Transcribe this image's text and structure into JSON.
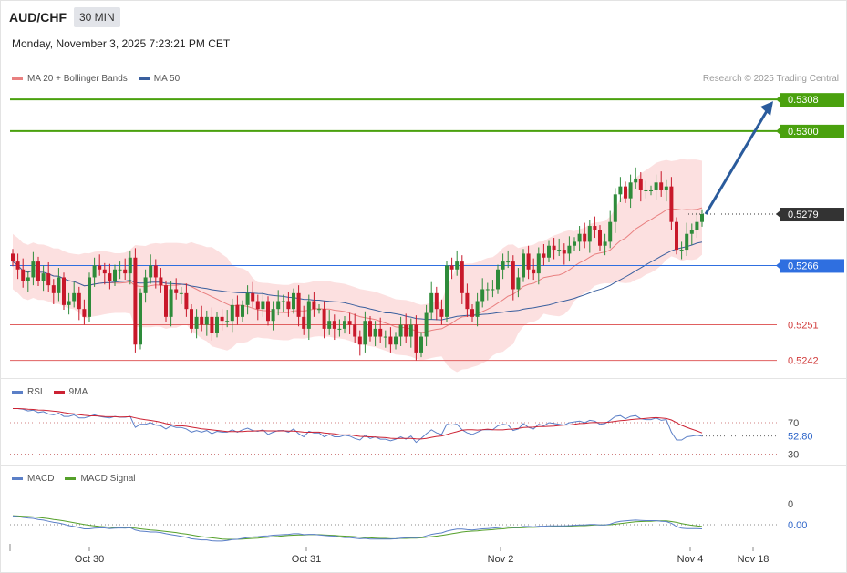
{
  "header": {
    "symbol": "AUD/CHF",
    "timeframe": "30 MIN",
    "datetime": "Monday, November 3, 2025 7:23:21 PM CET"
  },
  "legend_main": {
    "ma20": "MA 20 + Bollinger Bands",
    "ma50": "MA 50"
  },
  "legend_rsi": {
    "rsi": "RSI",
    "ma9": "9MA"
  },
  "legend_macd": {
    "macd": "MACD",
    "signal": "MACD Signal"
  },
  "credit": "Research © 2025 Trading Central",
  "colors": {
    "up": "#2e8b3a",
    "down": "#c8182a",
    "bb_fill": "#fbd5d5",
    "ma20": "#e98080",
    "ma50": "#3a5f9e",
    "resistance": "#4aa10e",
    "support": "#e06060",
    "pivot": "#2f6fe0",
    "arrow": "#2a5b9c",
    "rsi": "#5b7fc7",
    "rsi_ma": "#cc2233",
    "macd": "#5b7fc7",
    "signal": "#55a02a"
  },
  "chart_data": [
    {
      "type": "candlestick",
      "y_range": [
        5.2232,
        5.2313
      ],
      "levels": [
        {
          "label": "0.5308",
          "kind": "resistance",
          "value": 0.5308
        },
        {
          "label": "0.5300",
          "kind": "resistance",
          "value": 0.53
        },
        {
          "label": "0.5279",
          "kind": "last",
          "value": 0.5279
        },
        {
          "label": "0.5266",
          "kind": "pivot",
          "value": 0.5266
        },
        {
          "label": "0.5251",
          "kind": "support",
          "value": 0.5251
        },
        {
          "label": "0.5242",
          "kind": "support",
          "value": 0.5242
        }
      ],
      "x_labels": [
        "Oct 30",
        "Oct 31",
        "Nov 2",
        "Nov 4",
        "Nov 18"
      ],
      "projection": {
        "from": 0.5279,
        "to": 0.5308
      },
      "close": [
        0.5267,
        0.5265,
        0.5262,
        0.5263,
        0.5267,
        0.5262,
        0.5264,
        0.5261,
        0.5259,
        0.5263,
        0.5256,
        0.5257,
        0.5259,
        0.5255,
        0.5253,
        0.5263,
        0.5266,
        0.5265,
        0.5264,
        0.5262,
        0.5265,
        0.5265,
        0.5264,
        0.5268,
        0.5246,
        0.5259,
        0.5263,
        0.5266,
        0.5263,
        0.5261,
        0.5253,
        0.526,
        0.5259,
        0.5259,
        0.5255,
        0.525,
        0.5253,
        0.5251,
        0.5253,
        0.5249,
        0.5253,
        0.5252,
        0.5252,
        0.5256,
        0.5253,
        0.5256,
        0.5259,
        0.5257,
        0.5255,
        0.5257,
        0.5252,
        0.5255,
        0.5257,
        0.5257,
        0.5255,
        0.5259,
        0.5253,
        0.525,
        0.5257,
        0.5255,
        0.5255,
        0.525,
        0.5252,
        0.525,
        0.525,
        0.5252,
        0.5251,
        0.5248,
        0.5246,
        0.5252,
        0.5248,
        0.525,
        0.5248,
        0.5248,
        0.5246,
        0.5248,
        0.5251,
        0.5248,
        0.5251,
        0.5244,
        0.5248,
        0.5254,
        0.5259,
        0.5255,
        0.5253,
        0.5266,
        0.5265,
        0.5267,
        0.5259,
        0.5255,
        0.5253,
        0.5257,
        0.526,
        0.526,
        0.526,
        0.5265,
        0.5267,
        0.5267,
        0.526,
        0.5263,
        0.5269,
        0.5265,
        0.5264,
        0.5269,
        0.5268,
        0.5271,
        0.527,
        0.527,
        0.5269,
        0.5271,
        0.5272,
        0.5274,
        0.5272,
        0.5276,
        0.5275,
        0.5271,
        0.5272,
        0.5277,
        0.5284,
        0.5286,
        0.5283,
        0.5287,
        0.5288,
        0.5285,
        0.5285,
        0.5285,
        0.5287,
        0.5285,
        0.5286,
        0.5277,
        0.527,
        0.527,
        0.5274,
        0.5275,
        0.5277,
        0.5279
      ]
    },
    {
      "type": "line",
      "name": "RSI",
      "y_range": [
        0,
        100
      ],
      "levels": [
        {
          "label": "70",
          "value": 70
        },
        {
          "label": "30",
          "value": 30
        }
      ],
      "last_value": "52.80",
      "values": [
        88,
        88,
        87,
        85,
        86,
        83,
        84,
        81,
        80,
        82,
        78,
        78,
        80,
        76,
        76,
        78,
        80,
        78,
        77,
        76,
        78,
        77,
        77,
        78,
        64,
        68,
        68,
        70,
        67,
        66,
        62,
        66,
        64,
        64,
        62,
        58,
        60,
        58,
        60,
        56,
        59,
        58,
        58,
        61,
        58,
        61,
        63,
        60,
        59,
        61,
        55,
        58,
        60,
        60,
        58,
        62,
        56,
        52,
        59,
        57,
        57,
        52,
        55,
        52,
        52,
        54,
        53,
        50,
        48,
        54,
        50,
        52,
        49,
        49,
        47,
        49,
        52,
        49,
        53,
        45,
        50,
        56,
        61,
        57,
        55,
        68,
        67,
        68,
        61,
        57,
        55,
        58,
        61,
        61,
        61,
        66,
        68,
        67,
        60,
        62,
        69,
        64,
        62,
        68,
        66,
        70,
        69,
        68,
        67,
        70,
        71,
        72,
        70,
        73,
        72,
        68,
        69,
        73,
        78,
        79,
        75,
        78,
        79,
        75,
        74,
        74,
        76,
        73,
        74,
        58,
        48,
        48,
        52,
        53,
        54,
        53
      ]
    },
    {
      "type": "line",
      "name": "MACD",
      "y_range": [
        -0.00075,
        0.00035
      ],
      "levels": [
        {
          "label": "0",
          "value": 0
        }
      ],
      "last_value": "0.00",
      "macd": [
        0.0003,
        0.00028,
        0.00025,
        0.00023,
        0.00022,
        0.00018,
        0.00016,
        0.00012,
        8e-05,
        6e-05,
        2e-05,
        -3e-05,
        -6e-05,
        -0.0001,
        -0.00014,
        -0.00014,
        -0.00012,
        -0.00011,
        -0.00011,
        -0.00013,
        -0.00012,
        -0.00011,
        -0.00012,
        -0.0001,
        -0.00018,
        -0.00022,
        -0.00023,
        -0.00025,
        -0.00025,
        -0.00027,
        -0.00031,
        -0.00034,
        -0.00037,
        -0.0004,
        -0.00043,
        -0.00048,
        -0.0005,
        -0.00052,
        -0.00052,
        -0.00055,
        -0.00056,
        -0.00056,
        -0.00054,
        -0.00051,
        -0.0005,
        -0.00047,
        -0.00044,
        -0.00042,
        -0.00041,
        -0.00039,
        -0.00038,
        -0.00036,
        -0.00035,
        -0.00034,
        -0.00033,
        -0.00031,
        -0.00031,
        -0.00034,
        -0.00033,
        -0.00033,
        -0.00035,
        -0.00037,
        -0.00038,
        -0.00039,
        -0.00042,
        -0.00044,
        -0.00044,
        -0.00046,
        -0.00048,
        -0.00047,
        -0.00049,
        -0.00049,
        -0.00049,
        -0.00049,
        -0.00049,
        -0.00048,
        -0.00046,
        -0.00045,
        -0.00044,
        -0.00045,
        -0.00043,
        -0.00038,
        -0.00033,
        -0.0003,
        -0.00028,
        -0.00022,
        -0.00018,
        -0.00015,
        -0.00015,
        -0.00017,
        -0.00018,
        -0.00016,
        -0.00014,
        -0.00013,
        -0.00012,
        -0.0001,
        -8e-05,
        -7e-05,
        -9e-05,
        -9e-05,
        -6e-05,
        -6e-05,
        -7e-05,
        -5e-05,
        -5e-05,
        -4e-05,
        -4e-05,
        -4e-05,
        -4e-05,
        -3e-05,
        -2e-05,
        -1e-05,
        -1e-05,
        1e-05,
        1e-05,
        -1e-05,
        -1e-05,
        2e-05,
        8e-05,
        0.00012,
        0.00013,
        0.00015,
        0.00016,
        0.00015,
        0.00014,
        0.00014,
        0.00014,
        0.00012,
        0.00011,
        5e-05,
        -6e-05,
        -0.00012,
        -0.00013,
        -0.00013,
        -0.00013,
        -0.00014
      ],
      "signal": [
        0.00031,
        0.0003,
        0.00029,
        0.00028,
        0.00027,
        0.00025,
        0.00023,
        0.00021,
        0.00018,
        0.00016,
        0.00013,
        0.0001,
        7e-05,
        4e-05,
        1e-05,
        -2e-05,
        -4e-05,
        -6e-05,
        -7e-05,
        -9e-05,
        -0.0001,
        -0.0001,
        -0.00011,
        -0.00011,
        -0.00012,
        -0.00014,
        -0.00016,
        -0.00018,
        -0.00019,
        -0.00021,
        -0.00023,
        -0.00025,
        -0.00027,
        -0.0003,
        -0.00032,
        -0.00035,
        -0.00038,
        -0.00041,
        -0.00043,
        -0.00045,
        -0.00047,
        -0.00049,
        -0.0005,
        -0.0005,
        -0.0005,
        -0.00049,
        -0.00048,
        -0.00047,
        -0.00046,
        -0.00044,
        -0.00043,
        -0.00041,
        -0.0004,
        -0.00038,
        -0.00037,
        -0.00036,
        -0.00035,
        -0.00035,
        -0.00034,
        -0.00034,
        -0.00034,
        -0.00035,
        -0.00036,
        -0.00037,
        -0.00038,
        -0.00039,
        -0.0004,
        -0.00041,
        -0.00043,
        -0.00044,
        -0.00045,
        -0.00046,
        -0.00047,
        -0.00047,
        -0.00048,
        -0.00048,
        -0.00047,
        -0.00047,
        -0.00046,
        -0.00046,
        -0.00045,
        -0.00043,
        -0.00041,
        -0.00039,
        -0.00037,
        -0.00034,
        -0.00031,
        -0.00028,
        -0.00025,
        -0.00023,
        -0.00022,
        -0.00021,
        -0.00019,
        -0.00018,
        -0.00017,
        -0.00015,
        -0.00014,
        -0.00012,
        -0.00011,
        -0.00011,
        -0.0001,
        -9e-05,
        -9e-05,
        -8e-05,
        -7e-05,
        -7e-05,
        -6e-05,
        -6e-05,
        -5e-05,
        -5e-05,
        -4e-05,
        -3e-05,
        -3e-05,
        -2e-05,
        -1e-05,
        -1e-05,
        -1e-05,
        0.0,
        2e-05,
        4e-05,
        6e-05,
        8e-05,
        0.0001,
        0.00011,
        0.00012,
        0.00012,
        0.00013,
        0.00013,
        0.00013,
        0.00011,
        8e-05,
        4e-05,
        1e-05,
        -2e-05,
        -4e-05,
        -6e-05
      ]
    }
  ]
}
